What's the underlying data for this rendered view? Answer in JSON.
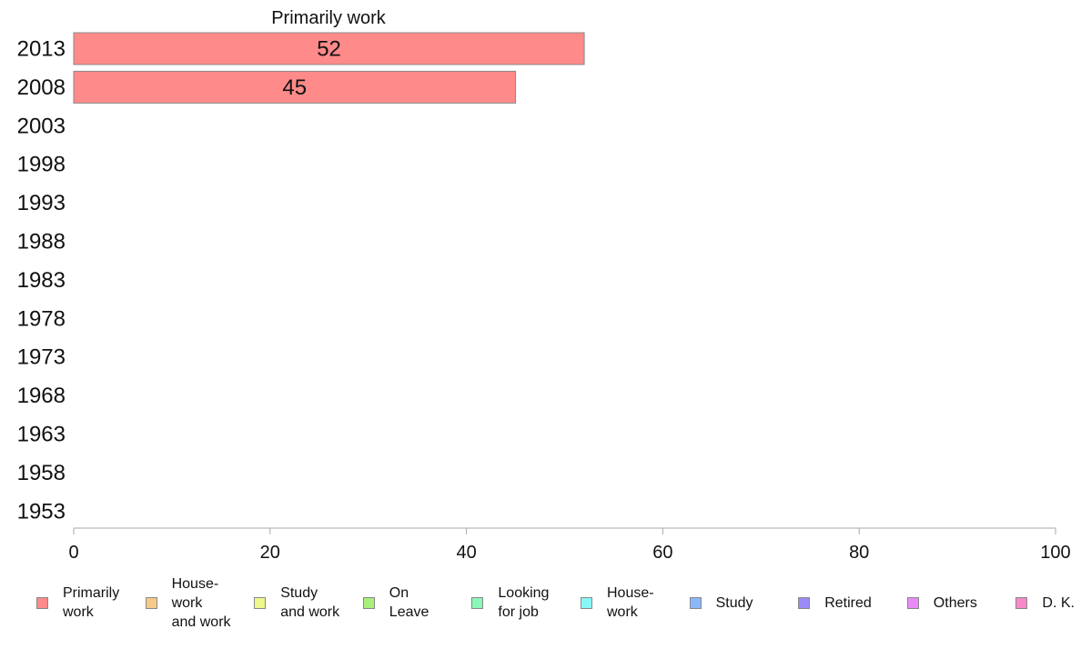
{
  "chart_data": {
    "type": "bar",
    "orientation": "horizontal",
    "title": "Primarily work",
    "categories": [
      "2013",
      "2008",
      "2003",
      "1998",
      "1993",
      "1988",
      "1983",
      "1978",
      "1973",
      "1968",
      "1963",
      "1958",
      "1953"
    ],
    "series": [
      {
        "name": "Primarily work",
        "color": "#ff8a8a",
        "values": [
          52,
          45,
          null,
          null,
          null,
          null,
          null,
          null,
          null,
          null,
          null,
          null,
          null
        ]
      }
    ],
    "xlim": [
      0,
      100
    ],
    "xticks": [
      "0",
      "20",
      "40",
      "60",
      "80",
      "100"
    ],
    "grid": false
  },
  "legend": [
    {
      "label": "Primarily\nwork",
      "color": "#ff8a8a"
    },
    {
      "label": "House-\nwork\nand work",
      "color": "#f7c98a"
    },
    {
      "label": "Study\nand work",
      "color": "#eef78a"
    },
    {
      "label": "On\nLeave",
      "color": "#a8f07a"
    },
    {
      "label": "Looking\nfor job",
      "color": "#8af7b8"
    },
    {
      "label": "House-\nwork",
      "color": "#8af7f7"
    },
    {
      "label": "Study",
      "color": "#8ab8f7"
    },
    {
      "label": "Retired",
      "color": "#9a8af7"
    },
    {
      "label": "Others",
      "color": "#e88af7"
    },
    {
      "label": "D. K.",
      "color": "#f78ac8"
    }
  ]
}
